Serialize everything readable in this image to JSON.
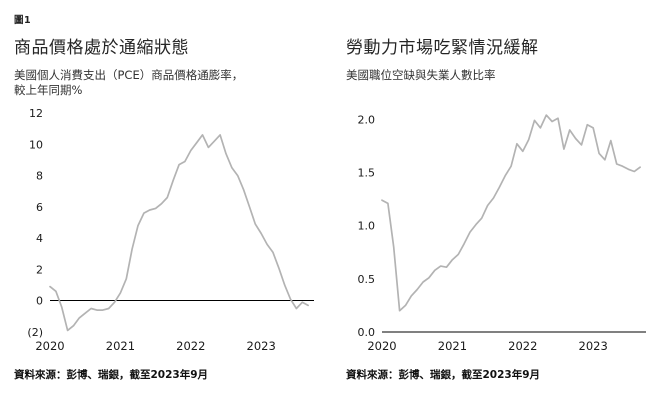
{
  "figure": {
    "label": "圖1"
  },
  "chart_data": [
    {
      "type": "line",
      "title": "商品價格處於通縮狀態",
      "subtitle": [
        "美國個人消費支出（PCE）商品價格通膨率，",
        "較上年同期%"
      ],
      "source": "資料來源：彭博、瑞銀，截至2023年9月",
      "xlabel": "",
      "ylabel": "",
      "x_start": "2020-01",
      "x_frequency": "monthly",
      "x_domain_months": 46,
      "x_tick_labels": [
        "2020",
        "2021",
        "2022",
        "2023"
      ],
      "y_ticks": [
        -2,
        0,
        2,
        4,
        6,
        8,
        10,
        12
      ],
      "y_tick_labels": [
        "(2)",
        "0",
        "2",
        "4",
        "6",
        "8",
        "10",
        "12"
      ],
      "ylim": [
        -2,
        12
      ],
      "grid": false,
      "legend": "none",
      "line_color": "#b3b3b3",
      "zero_axis_line": true,
      "values": [
        0.9,
        0.6,
        -0.4,
        -1.9,
        -1.6,
        -1.1,
        -0.8,
        -0.5,
        -0.6,
        -0.6,
        -0.5,
        -0.1,
        0.5,
        1.4,
        3.3,
        4.8,
        5.6,
        5.8,
        5.9,
        6.2,
        6.6,
        7.7,
        8.7,
        8.9,
        9.6,
        10.1,
        10.6,
        9.8,
        10.2,
        10.6,
        9.4,
        8.5,
        8.0,
        7.1,
        6.0,
        4.9,
        4.3,
        3.6,
        3.1,
        2.1,
        1.0,
        0.1,
        -0.5,
        -0.1,
        -0.3
      ]
    },
    {
      "type": "line",
      "title": "勞動力市場吃緊情況緩解",
      "subtitle": [
        "美國職位空缺與失業人數比率"
      ],
      "source": "資料來源：彭博、瑞銀，截至2023年9月",
      "xlabel": "",
      "ylabel": "",
      "x_start": "2020-01",
      "x_frequency": "monthly",
      "x_domain_months": 46,
      "x_tick_labels": [
        "2020",
        "2021",
        "2022",
        "2023"
      ],
      "y_ticks": [
        0.0,
        0.5,
        1.0,
        1.5,
        2.0
      ],
      "y_tick_labels": [
        "0.0",
        "0.5",
        "1.0",
        "1.5",
        "2.0"
      ],
      "ylim": [
        0,
        2.06
      ],
      "grid": false,
      "legend": "none",
      "line_color": "#b3b3b3",
      "zero_axis_line": true,
      "values": [
        1.24,
        1.21,
        0.8,
        0.2,
        0.25,
        0.34,
        0.4,
        0.47,
        0.51,
        0.58,
        0.62,
        0.61,
        0.68,
        0.73,
        0.83,
        0.94,
        1.01,
        1.07,
        1.19,
        1.26,
        1.36,
        1.47,
        1.56,
        1.77,
        1.7,
        1.81,
        1.99,
        1.92,
        2.04,
        1.98,
        2.01,
        1.72,
        1.9,
        1.82,
        1.76,
        1.95,
        1.92,
        1.68,
        1.62,
        1.8,
        1.58,
        1.56,
        1.53,
        1.51,
        1.55
      ]
    }
  ]
}
